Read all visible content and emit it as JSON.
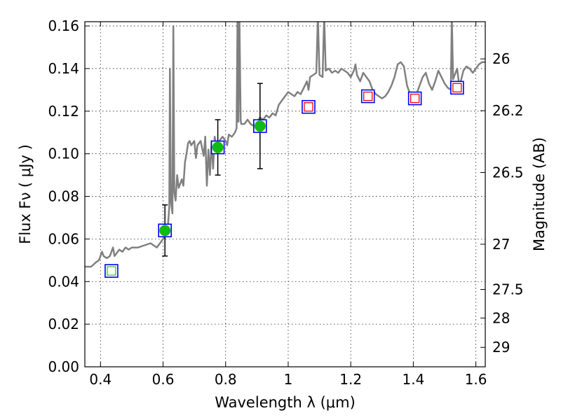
{
  "chart_data": {
    "type": "scatter",
    "xlabel": "Wavelength  λ (μm)",
    "ylabel": "Flux  Fν  ( μJy )",
    "ylabel_right": "Magnitude (AB)",
    "xlim": [
      0.35,
      1.63
    ],
    "ylim": [
      0.0,
      0.162
    ],
    "grid": true,
    "x_ticks": [
      {
        "value": 0.4,
        "label": "0.4"
      },
      {
        "value": 0.6,
        "label": "0.6"
      },
      {
        "value": 0.8,
        "label": "0.8"
      },
      {
        "value": 1.0,
        "label": "1"
      },
      {
        "value": 1.2,
        "label": "1.2"
      },
      {
        "value": 1.4,
        "label": "1.4"
      },
      {
        "value": 1.6,
        "label": "1.6"
      }
    ],
    "y_ticks": [
      {
        "value": 0.0,
        "label": "0.00"
      },
      {
        "value": 0.02,
        "label": "0.02"
      },
      {
        "value": 0.04,
        "label": "0.04"
      },
      {
        "value": 0.06,
        "label": "0.06"
      },
      {
        "value": 0.08,
        "label": "0.08"
      },
      {
        "value": 0.1,
        "label": "0.10"
      },
      {
        "value": 0.12,
        "label": "0.12"
      },
      {
        "value": 0.14,
        "label": "0.14"
      },
      {
        "value": 0.16,
        "label": "0.16"
      }
    ],
    "magnitude_ticks": [
      {
        "value": 26,
        "label": "26"
      },
      {
        "value": 26.2,
        "label": "26.2"
      },
      {
        "value": 26.5,
        "label": "26.5"
      },
      {
        "value": 27,
        "label": "27"
      },
      {
        "value": 27.5,
        "label": "27.5"
      },
      {
        "value": 28,
        "label": "28"
      },
      {
        "value": 29,
        "label": "29"
      }
    ],
    "model_spectrum": {
      "color": "#808080",
      "points": [
        [
          0.35,
          0.047
        ],
        [
          0.37,
          0.047
        ],
        [
          0.385,
          0.049
        ],
        [
          0.395,
          0.05
        ],
        [
          0.4,
          0.052
        ],
        [
          0.405,
          0.054
        ],
        [
          0.41,
          0.052
        ],
        [
          0.42,
          0.051
        ],
        [
          0.43,
          0.052
        ],
        [
          0.435,
          0.054
        ],
        [
          0.44,
          0.056
        ],
        [
          0.445,
          0.052
        ],
        [
          0.45,
          0.053
        ],
        [
          0.46,
          0.055
        ],
        [
          0.47,
          0.054
        ],
        [
          0.48,
          0.056
        ],
        [
          0.49,
          0.055
        ],
        [
          0.5,
          0.056
        ],
        [
          0.52,
          0.056
        ],
        [
          0.54,
          0.057
        ],
        [
          0.56,
          0.058
        ],
        [
          0.58,
          0.056
        ],
        [
          0.59,
          0.058
        ],
        [
          0.6,
          0.06
        ],
        [
          0.61,
          0.062
        ],
        [
          0.615,
          0.065
        ],
        [
          0.62,
          0.075
        ],
        [
          0.622,
          0.14
        ],
        [
          0.625,
          0.078
        ],
        [
          0.63,
          0.072
        ],
        [
          0.633,
          0.16
        ],
        [
          0.636,
          0.082
        ],
        [
          0.64,
          0.078
        ],
        [
          0.645,
          0.09
        ],
        [
          0.65,
          0.084
        ],
        [
          0.66,
          0.088
        ],
        [
          0.665,
          0.085
        ],
        [
          0.67,
          0.096
        ],
        [
          0.675,
          0.1
        ],
        [
          0.68,
          0.105
        ],
        [
          0.685,
          0.106
        ],
        [
          0.69,
          0.104
        ],
        [
          0.7,
          0.106
        ],
        [
          0.705,
          0.098
        ],
        [
          0.71,
          0.104
        ],
        [
          0.72,
          0.106
        ],
        [
          0.73,
          0.099
        ],
        [
          0.735,
          0.108
        ],
        [
          0.74,
          0.085
        ],
        [
          0.745,
          0.102
        ],
        [
          0.75,
          0.09
        ],
        [
          0.755,
          0.106
        ],
        [
          0.76,
          0.093
        ],
        [
          0.765,
          0.108
        ],
        [
          0.77,
          0.104
        ],
        [
          0.78,
          0.106
        ],
        [
          0.79,
          0.108
        ],
        [
          0.8,
          0.106
        ],
        [
          0.805,
          0.104
        ],
        [
          0.81,
          0.109
        ],
        [
          0.82,
          0.108
        ],
        [
          0.83,
          0.11
        ],
        [
          0.835,
          0.112
        ],
        [
          0.838,
          0.165
        ],
        [
          0.841,
          0.115
        ],
        [
          0.844,
          0.165
        ],
        [
          0.848,
          0.116
        ],
        [
          0.85,
          0.114
        ],
        [
          0.86,
          0.114
        ],
        [
          0.87,
          0.116
        ],
        [
          0.88,
          0.114
        ],
        [
          0.89,
          0.113
        ],
        [
          0.9,
          0.115
        ],
        [
          0.91,
          0.117
        ],
        [
          0.92,
          0.116
        ],
        [
          0.93,
          0.118
        ],
        [
          0.94,
          0.117
        ],
        [
          0.95,
          0.119
        ],
        [
          0.96,
          0.118
        ],
        [
          0.97,
          0.123
        ],
        [
          0.98,
          0.125
        ],
        [
          0.99,
          0.127
        ],
        [
          1.0,
          0.129
        ],
        [
          1.01,
          0.128
        ],
        [
          1.02,
          0.127
        ],
        [
          1.03,
          0.129
        ],
        [
          1.04,
          0.128
        ],
        [
          1.05,
          0.131
        ],
        [
          1.06,
          0.134
        ],
        [
          1.065,
          0.13
        ],
        [
          1.07,
          0.136
        ],
        [
          1.08,
          0.137
        ],
        [
          1.09,
          0.138
        ],
        [
          1.095,
          0.165
        ],
        [
          1.1,
          0.137
        ],
        [
          1.11,
          0.136
        ],
        [
          1.115,
          0.165
        ],
        [
          1.12,
          0.139
        ],
        [
          1.13,
          0.14
        ],
        [
          1.14,
          0.138
        ],
        [
          1.15,
          0.139
        ],
        [
          1.16,
          0.138
        ],
        [
          1.17,
          0.14
        ],
        [
          1.18,
          0.139
        ],
        [
          1.19,
          0.138
        ],
        [
          1.2,
          0.136
        ],
        [
          1.21,
          0.139
        ],
        [
          1.215,
          0.142
        ],
        [
          1.22,
          0.137
        ],
        [
          1.23,
          0.134
        ],
        [
          1.24,
          0.138
        ],
        [
          1.25,
          0.136
        ],
        [
          1.26,
          0.134
        ],
        [
          1.27,
          0.13
        ],
        [
          1.28,
          0.128
        ],
        [
          1.29,
          0.127
        ],
        [
          1.3,
          0.126
        ],
        [
          1.31,
          0.127
        ],
        [
          1.32,
          0.129
        ],
        [
          1.33,
          0.132
        ],
        [
          1.34,
          0.136
        ],
        [
          1.35,
          0.142
        ],
        [
          1.36,
          0.143
        ],
        [
          1.37,
          0.141
        ],
        [
          1.38,
          0.132
        ],
        [
          1.39,
          0.128
        ],
        [
          1.4,
          0.126
        ],
        [
          1.41,
          0.128
        ],
        [
          1.42,
          0.132
        ],
        [
          1.43,
          0.136
        ],
        [
          1.44,
          0.138
        ],
        [
          1.45,
          0.133
        ],
        [
          1.46,
          0.13
        ],
        [
          1.47,
          0.134
        ],
        [
          1.48,
          0.139
        ],
        [
          1.49,
          0.136
        ],
        [
          1.5,
          0.133
        ],
        [
          1.51,
          0.131
        ],
        [
          1.52,
          0.13
        ],
        [
          1.523,
          0.165
        ],
        [
          1.527,
          0.135
        ],
        [
          1.535,
          0.138
        ],
        [
          1.54,
          0.14
        ],
        [
          1.545,
          0.134
        ],
        [
          1.55,
          0.133
        ],
        [
          1.56,
          0.139
        ],
        [
          1.57,
          0.141
        ],
        [
          1.58,
          0.14
        ],
        [
          1.59,
          0.138
        ],
        [
          1.6,
          0.14
        ],
        [
          1.61,
          0.142
        ],
        [
          1.62,
          0.143
        ],
        [
          1.63,
          0.143
        ]
      ]
    },
    "model_photometry": {
      "edge_color": "#0000ff",
      "points": [
        {
          "x": 0.435,
          "y": 0.045
        },
        {
          "x": 0.606,
          "y": 0.064
        },
        {
          "x": 0.775,
          "y": 0.103
        },
        {
          "x": 0.91,
          "y": 0.113
        },
        {
          "x": 1.065,
          "y": 0.122
        },
        {
          "x": 1.255,
          "y": 0.127
        },
        {
          "x": 1.405,
          "y": 0.126
        },
        {
          "x": 1.54,
          "y": 0.131
        }
      ]
    },
    "observed_detections": {
      "color": "#11bb11",
      "points": [
        {
          "x": 0.606,
          "y": 0.064,
          "yerr": 0.012
        },
        {
          "x": 0.775,
          "y": 0.103,
          "yerr": 0.013
        },
        {
          "x": 0.91,
          "y": 0.113,
          "yerr": 0.02
        }
      ]
    },
    "upper_limits": {
      "points": [
        {
          "x": 0.435,
          "y": 0.045,
          "color": "#33cc33"
        },
        {
          "x": 1.065,
          "y": 0.122,
          "color": "#ff0000"
        },
        {
          "x": 1.255,
          "y": 0.127,
          "color": "#ff0000"
        },
        {
          "x": 1.405,
          "y": 0.126,
          "color": "#ff0000"
        },
        {
          "x": 1.54,
          "y": 0.131,
          "color": "#ff0000"
        }
      ]
    }
  }
}
